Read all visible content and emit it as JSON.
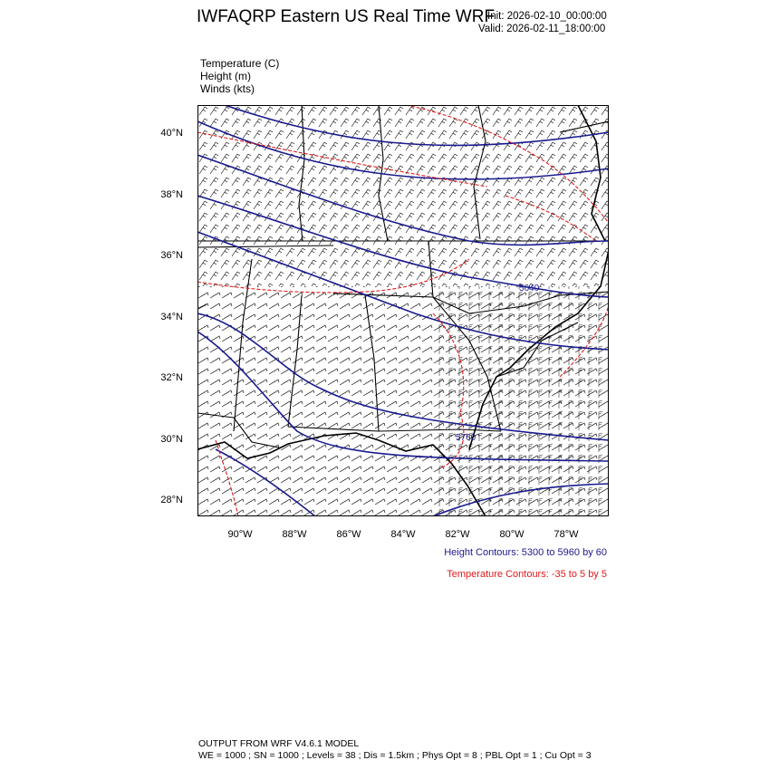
{
  "header": {
    "title": "IWFAQRP Eastern US Real Time WRF",
    "init": "Init: 2026-02-10_00:00:00",
    "valid": "Valid: 2026-02-11_18:00:00"
  },
  "fields": {
    "temperature": "Temperature   (C)",
    "height": "Height   (m)",
    "winds": "Winds   (kts)"
  },
  "map": {
    "lat_ticks": [
      "40°N",
      "38°N",
      "36°N",
      "34°N",
      "32°N",
      "30°N",
      "28°N"
    ],
    "lon_ticks": [
      "90°W",
      "88°W",
      "86°W",
      "84°W",
      "82°W",
      "80°W",
      "78°W"
    ],
    "contour_labels": [
      "5640",
      "5760"
    ],
    "colors": {
      "height": "#1a1a8f",
      "temperature": "#e01a1a",
      "boundaries": "#000000"
    }
  },
  "legend": {
    "height": "Height Contours: 5300 to 5960 by 60",
    "temperature": "Temperature Contours: -35 to 5 by 5"
  },
  "footer": {
    "line1": "OUTPUT FROM WRF V4.6.1 MODEL",
    "line2": "WE = 1000 ; SN = 1000 ; Levels = 38 ; Dis = 1.5km ; Phys Opt = 8 ; PBL Opt = 1 ; Cu Opt = 3"
  }
}
